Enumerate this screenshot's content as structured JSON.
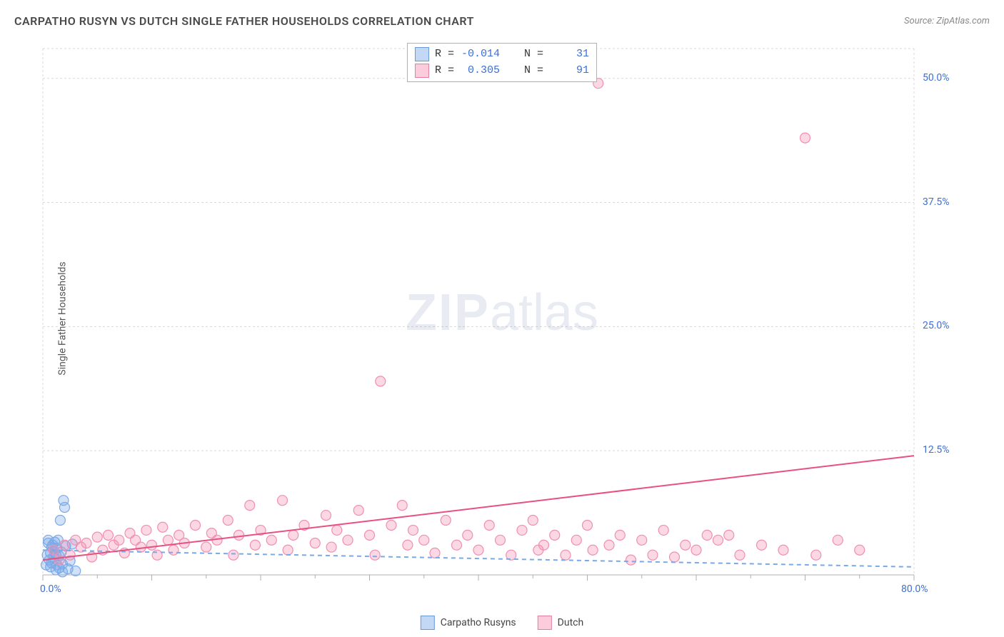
{
  "title": "CARPATHO RUSYN VS DUTCH SINGLE FATHER HOUSEHOLDS CORRELATION CHART",
  "source": "Source: ZipAtlas.com",
  "ylabel": "Single Father Households",
  "watermark_bold": "ZIP",
  "watermark_light": "atlas",
  "chart": {
    "type": "scatter",
    "background_color": "#ffffff",
    "grid_color": "#d8d8d8",
    "axis_color": "#b0b0b0",
    "xlim": [
      0,
      80
    ],
    "ylim": [
      0,
      53
    ],
    "xlabel_min": "0.0%",
    "xlabel_max": "80.0%",
    "xlabel_color": "#3b6fd6",
    "ylabels": [
      "12.5%",
      "25.0%",
      "37.5%",
      "50.0%"
    ],
    "ylabel_values": [
      12.5,
      25.0,
      37.5,
      50.0
    ],
    "ylabel_color": "#3b6fd6",
    "xtick_majors": [
      0,
      10,
      20,
      30,
      40,
      50,
      60,
      70,
      80
    ],
    "xtick_minors": [
      5,
      15,
      25,
      35,
      45,
      55,
      65,
      75
    ],
    "marker_radius": 7,
    "marker_stroke_width": 1.2,
    "trendline_width": 2
  },
  "series": [
    {
      "name": "Carpatho Rusyns",
      "color_fill": "rgba(122,169,232,0.35)",
      "color_stroke": "#7aa9e8",
      "swatch_fill": "rgba(122,169,232,0.45)",
      "swatch_border": "#6a99d8",
      "r": "-0.014",
      "r_color": "#3b6fd6",
      "n": "31",
      "n_color": "#3b6fd6",
      "trendline": {
        "x1": 0,
        "y1": 2.5,
        "x2": 80,
        "y2": 0.8,
        "dashed": true,
        "color": "#7aa9e8"
      },
      "points": [
        [
          0.3,
          1.0
        ],
        [
          0.4,
          2.0
        ],
        [
          0.5,
          3.2
        ],
        [
          0.5,
          3.5
        ],
        [
          0.6,
          1.5
        ],
        [
          0.7,
          2.2
        ],
        [
          0.7,
          0.8
        ],
        [
          0.8,
          2.8
        ],
        [
          0.8,
          1.2
        ],
        [
          0.9,
          3.0
        ],
        [
          1.0,
          2.5
        ],
        [
          1.0,
          1.8
        ],
        [
          1.1,
          3.3
        ],
        [
          1.2,
          0.5
        ],
        [
          1.2,
          2.0
        ],
        [
          1.3,
          1.0
        ],
        [
          1.3,
          2.7
        ],
        [
          1.4,
          3.5
        ],
        [
          1.5,
          0.7
        ],
        [
          1.5,
          1.9
        ],
        [
          1.6,
          5.5
        ],
        [
          1.7,
          2.3
        ],
        [
          1.8,
          1.1
        ],
        [
          1.8,
          0.3
        ],
        [
          1.9,
          7.5
        ],
        [
          2.0,
          6.8
        ],
        [
          2.1,
          2.9
        ],
        [
          2.3,
          0.6
        ],
        [
          2.5,
          1.4
        ],
        [
          2.7,
          3.1
        ],
        [
          3.0,
          0.4
        ]
      ]
    },
    {
      "name": "Dutch",
      "color_fill": "rgba(244,143,177,0.35)",
      "color_stroke": "#f08fb1",
      "swatch_fill": "rgba(244,143,177,0.45)",
      "swatch_border": "#e07fa1",
      "r": "0.305",
      "r_color": "#3b6fd6",
      "n": "91",
      "n_color": "#3b6fd6",
      "trendline": {
        "x1": 0,
        "y1": 1.5,
        "x2": 80,
        "y2": 12.0,
        "dashed": false,
        "color": "#e8517f"
      },
      "points": [
        [
          1.0,
          2.5
        ],
        [
          1.5,
          1.5
        ],
        [
          2.0,
          3.0
        ],
        [
          2.5,
          2.0
        ],
        [
          3.0,
          3.5
        ],
        [
          3.5,
          2.8
        ],
        [
          4.0,
          3.2
        ],
        [
          4.5,
          1.8
        ],
        [
          5.0,
          3.8
        ],
        [
          5.5,
          2.5
        ],
        [
          6.0,
          4.0
        ],
        [
          6.5,
          3.0
        ],
        [
          7.0,
          3.5
        ],
        [
          7.5,
          2.2
        ],
        [
          8.0,
          4.2
        ],
        [
          8.5,
          3.5
        ],
        [
          9.0,
          2.8
        ],
        [
          9.5,
          4.5
        ],
        [
          10.0,
          3.0
        ],
        [
          10.5,
          2.0
        ],
        [
          11.0,
          4.8
        ],
        [
          11.5,
          3.5
        ],
        [
          12.0,
          2.5
        ],
        [
          12.5,
          4.0
        ],
        [
          13.0,
          3.2
        ],
        [
          14.0,
          5.0
        ],
        [
          15.0,
          2.8
        ],
        [
          15.5,
          4.2
        ],
        [
          16.0,
          3.5
        ],
        [
          17.0,
          5.5
        ],
        [
          17.5,
          2.0
        ],
        [
          18.0,
          4.0
        ],
        [
          19.0,
          7.0
        ],
        [
          19.5,
          3.0
        ],
        [
          20.0,
          4.5
        ],
        [
          21.0,
          3.5
        ],
        [
          22.0,
          7.5
        ],
        [
          22.5,
          2.5
        ],
        [
          23.0,
          4.0
        ],
        [
          24.0,
          5.0
        ],
        [
          25.0,
          3.2
        ],
        [
          26.0,
          6.0
        ],
        [
          26.5,
          2.8
        ],
        [
          27.0,
          4.5
        ],
        [
          28.0,
          3.5
        ],
        [
          29.0,
          6.5
        ],
        [
          30.0,
          4.0
        ],
        [
          30.5,
          2.0
        ],
        [
          31.0,
          19.5
        ],
        [
          32.0,
          5.0
        ],
        [
          33.0,
          7.0
        ],
        [
          33.5,
          3.0
        ],
        [
          34.0,
          4.5
        ],
        [
          35.0,
          3.5
        ],
        [
          36.0,
          2.2
        ],
        [
          37.0,
          5.5
        ],
        [
          38.0,
          3.0
        ],
        [
          39.0,
          4.0
        ],
        [
          40.0,
          2.5
        ],
        [
          41.0,
          5.0
        ],
        [
          42.0,
          3.5
        ],
        [
          43.0,
          2.0
        ],
        [
          44.0,
          4.5
        ],
        [
          45.0,
          5.5
        ],
        [
          45.5,
          2.5
        ],
        [
          46.0,
          3.0
        ],
        [
          47.0,
          4.0
        ],
        [
          48.0,
          2.0
        ],
        [
          49.0,
          3.5
        ],
        [
          50.0,
          5.0
        ],
        [
          50.5,
          2.5
        ],
        [
          51.0,
          49.5
        ],
        [
          52.0,
          3.0
        ],
        [
          53.0,
          4.0
        ],
        [
          54.0,
          1.5
        ],
        [
          55.0,
          3.5
        ],
        [
          56.0,
          2.0
        ],
        [
          57.0,
          4.5
        ],
        [
          58.0,
          1.8
        ],
        [
          59.0,
          3.0
        ],
        [
          60.0,
          2.5
        ],
        [
          61.0,
          4.0
        ],
        [
          62.0,
          3.5
        ],
        [
          63.0,
          4.0
        ],
        [
          64.0,
          2.0
        ],
        [
          66.0,
          3.0
        ],
        [
          68.0,
          2.5
        ],
        [
          70.0,
          44.0
        ],
        [
          71.0,
          2.0
        ],
        [
          73.0,
          3.5
        ],
        [
          75.0,
          2.5
        ]
      ]
    }
  ],
  "legend_bottom": [
    {
      "label": "Carpatho Rusyns",
      "series": 0
    },
    {
      "label": "Dutch",
      "series": 1
    }
  ]
}
